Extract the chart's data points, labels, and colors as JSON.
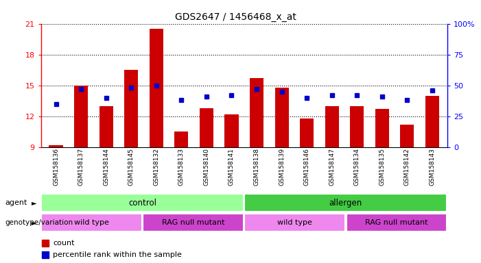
{
  "title": "GDS2647 / 1456468_x_at",
  "samples": [
    "GSM158136",
    "GSM158137",
    "GSM158144",
    "GSM158145",
    "GSM158132",
    "GSM158133",
    "GSM158140",
    "GSM158141",
    "GSM158138",
    "GSM158139",
    "GSM158146",
    "GSM158147",
    "GSM158134",
    "GSM158135",
    "GSM158142",
    "GSM158143"
  ],
  "bar_values": [
    9.2,
    15.0,
    13.0,
    16.5,
    20.5,
    10.5,
    12.8,
    12.2,
    15.7,
    14.8,
    11.8,
    13.0,
    13.0,
    12.7,
    11.2,
    14.0
  ],
  "percentile_values": [
    35,
    47,
    40,
    48,
    50,
    38,
    41,
    42,
    47,
    45,
    40,
    42,
    42,
    41,
    38,
    46
  ],
  "ylim": [
    9,
    21
  ],
  "yticks": [
    9,
    12,
    15,
    18,
    21
  ],
  "y2lim": [
    0,
    100
  ],
  "y2ticks": [
    0,
    25,
    50,
    75,
    100
  ],
  "bar_color": "#cc0000",
  "percentile_color": "#0000cc",
  "agent_labels": [
    {
      "text": "control",
      "start": 0,
      "end": 8,
      "color": "#99ff99"
    },
    {
      "text": "allergen",
      "start": 8,
      "end": 16,
      "color": "#44cc44"
    }
  ],
  "genotype_labels": [
    {
      "text": "wild type",
      "start": 0,
      "end": 4,
      "color": "#ee88ee"
    },
    {
      "text": "RAG null mutant",
      "start": 4,
      "end": 8,
      "color": "#cc44cc"
    },
    {
      "text": "wild type",
      "start": 8,
      "end": 12,
      "color": "#ee88ee"
    },
    {
      "text": "RAG null mutant",
      "start": 12,
      "end": 16,
      "color": "#cc44cc"
    }
  ],
  "xlabel_agent": "agent",
  "xlabel_genotype": "genotype/variation",
  "legend_count": "count",
  "legend_percentile": "percentile rank within the sample",
  "plot_bg": "#ffffff",
  "title_fontsize": 10,
  "grid_color": "#000000"
}
